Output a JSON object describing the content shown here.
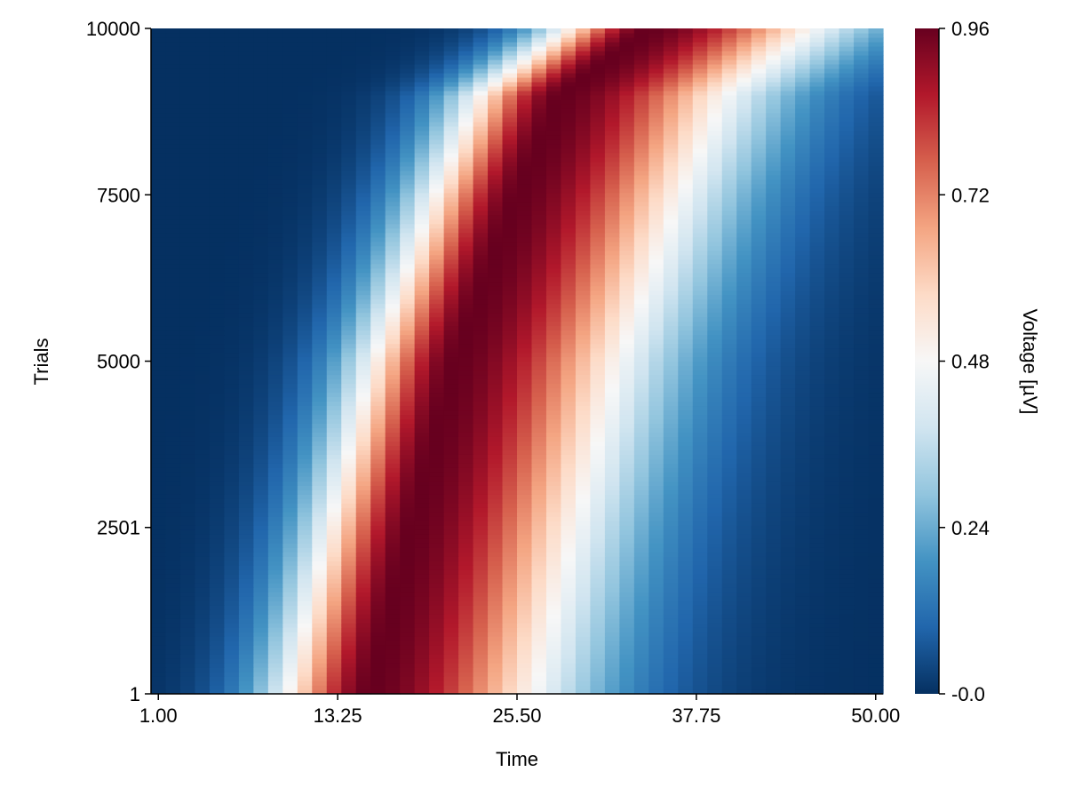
{
  "chart_data": {
    "type": "heatmap",
    "title": "",
    "xlabel": "Time",
    "ylabel": "Trials",
    "colorbar_label": "Voltage [µV]",
    "x_range": [
      1,
      50
    ],
    "y_range": [
      1,
      10000
    ],
    "x_ticks": [
      {
        "value": 1.0,
        "label": "1.00"
      },
      {
        "value": 13.25,
        "label": "13.25"
      },
      {
        "value": 25.5,
        "label": "25.50"
      },
      {
        "value": 37.75,
        "label": "37.75"
      },
      {
        "value": 50.0,
        "label": "50.00"
      }
    ],
    "y_ticks": [
      {
        "value": 1,
        "label": "1"
      },
      {
        "value": 2501,
        "label": "2501"
      },
      {
        "value": 5000,
        "label": "5000"
      },
      {
        "value": 7500,
        "label": "7500"
      },
      {
        "value": 10000,
        "label": "10000"
      }
    ],
    "color_range": [
      0.0,
      0.96
    ],
    "colorbar_ticks": [
      {
        "value": 0.0,
        "label": "-0.0"
      },
      {
        "value": 0.24,
        "label": "0.24"
      },
      {
        "value": 0.48,
        "label": "0.48"
      },
      {
        "value": 0.72,
        "label": "0.72"
      },
      {
        "value": 0.96,
        "label": "0.96"
      }
    ],
    "colormap": [
      "#053061",
      "#2166ac",
      "#4393c3",
      "#92c5de",
      "#d1e5f0",
      "#f7f7f7",
      "#fddbc7",
      "#f4a582",
      "#d6604d",
      "#b2182b",
      "#67001f"
    ],
    "grid": false,
    "legend": "colorbar-right",
    "peak_time_by_trial": [
      {
        "trial": 1,
        "time": 15.5
      },
      {
        "trial": 2501,
        "time": 18.3
      },
      {
        "trial": 5000,
        "time": 21.3
      },
      {
        "trial": 7500,
        "time": 25.5
      },
      {
        "trial": 9000,
        "time": 28.5
      },
      {
        "trial": 10000,
        "time": 34.5
      }
    ]
  }
}
